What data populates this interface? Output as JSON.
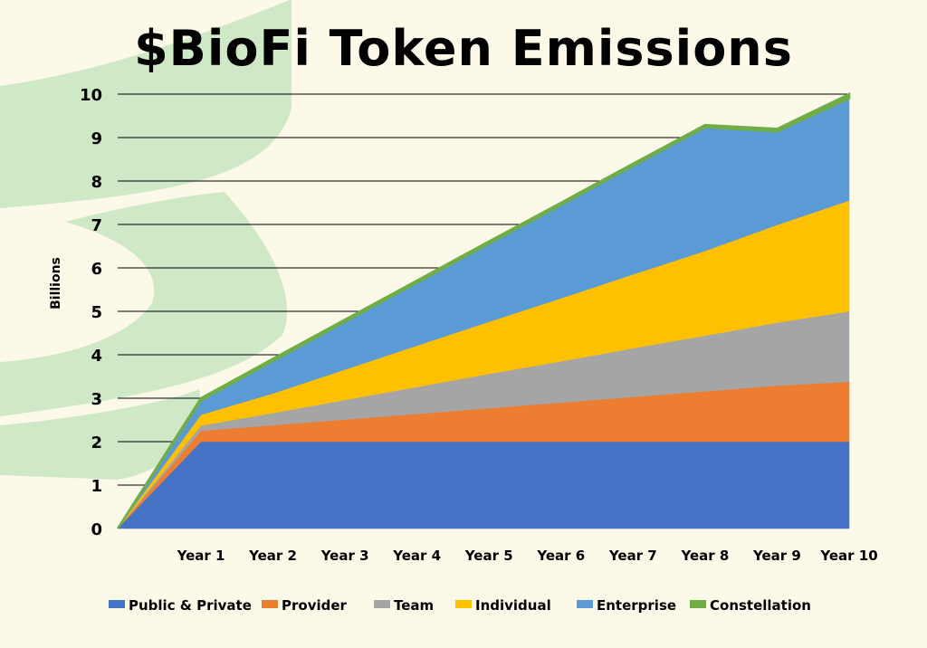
{
  "chart_data": {
    "type": "area",
    "title": "$BioFi Token Emissions",
    "ylabel": "Billions",
    "xlabel": "",
    "ylim": [
      0,
      10
    ],
    "yticks": [
      0,
      1,
      2,
      3,
      4,
      5,
      6,
      7,
      8,
      9,
      10
    ],
    "grid": "horizontal",
    "legend_position": "bottom",
    "stacked": true,
    "categories": [
      "Year 1",
      "Year 2",
      "Year 3",
      "Year 4",
      "Year 5",
      "Year 6",
      "Year 7",
      "Year 8",
      "Year 9",
      "Year 10"
    ],
    "series": [
      {
        "name": "Public & Private",
        "color": "#4472c4",
        "values": [
          2.0,
          2.0,
          2.0,
          2.0,
          2.0,
          2.0,
          2.0,
          2.0,
          2.0,
          2.0
        ]
      },
      {
        "name": "Provider",
        "color": "#ed7d31",
        "values": [
          0.25,
          0.38,
          0.51,
          0.64,
          0.77,
          0.9,
          1.03,
          1.16,
          1.29,
          1.38
        ]
      },
      {
        "name": "Team",
        "color": "#a5a5a5",
        "values": [
          0.12,
          0.28,
          0.45,
          0.62,
          0.79,
          0.95,
          1.12,
          1.28,
          1.45,
          1.62
        ]
      },
      {
        "name": "Individual",
        "color": "#ffc000",
        "values": [
          0.25,
          0.45,
          0.7,
          0.95,
          1.2,
          1.45,
          1.7,
          1.95,
          2.25,
          2.55
        ]
      },
      {
        "name": "Enterprise",
        "color": "#5b9bd5",
        "values": [
          0.33,
          0.75,
          1.1,
          1.45,
          1.8,
          2.15,
          2.5,
          2.85,
          2.15,
          2.35
        ]
      },
      {
        "name": "Constellation",
        "color": "#70ad47",
        "values": [
          0.05,
          0.05,
          0.05,
          0.05,
          0.05,
          0.05,
          0.05,
          0.05,
          0.06,
          0.1
        ]
      }
    ]
  }
}
